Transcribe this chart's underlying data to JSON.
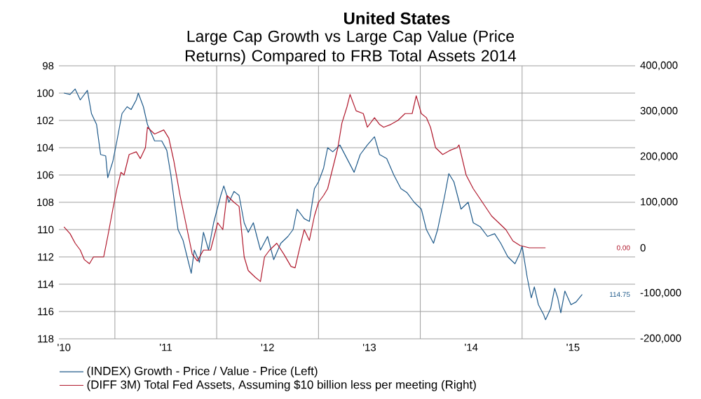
{
  "chart_data": {
    "type": "line",
    "title": "United States",
    "subtitle": "Large Cap Growth vs Large Cap Value (Price Returns) Compared to FRB Total Assets 2014",
    "xlim": [
      2009.95,
      2015.61
    ],
    "annotations": [
      "114.75",
      "0.00"
    ],
    "xticks": [
      {
        "value": 2010,
        "label": "'10"
      },
      {
        "value": 2010.5,
        "label": null
      },
      {
        "value": 2011,
        "label": "'11"
      },
      {
        "value": 2011.5,
        "label": null
      },
      {
        "value": 2012,
        "label": "'12"
      },
      {
        "value": 2012.5,
        "label": null
      },
      {
        "value": 2013,
        "label": "'13"
      },
      {
        "value": 2013.5,
        "label": null
      },
      {
        "value": 2014,
        "label": "'14"
      },
      {
        "value": 2014.5,
        "label": null
      },
      {
        "value": 2015,
        "label": "'15"
      }
    ],
    "ylim": [
      118,
      98
    ],
    "yticks": [
      98,
      100,
      102,
      104,
      106,
      108,
      110,
      112,
      114,
      116,
      118
    ],
    "y2lim": [
      -200000,
      400000
    ],
    "y2ticks": [
      {
        "value": -200000,
        "label": "-200,000"
      },
      {
        "value": -100000,
        "label": "-100,000"
      },
      0,
      {
        "value": 100000,
        "label": "100,000"
      },
      {
        "value": 200000,
        "label": "200,000"
      },
      {
        "value": 300000,
        "label": "300,000"
      },
      {
        "value": 400000,
        "label": "400,000"
      }
    ],
    "grid": true,
    "legend": "bottom",
    "marker": "none",
    "line_style": "solid",
    "series": [
      {
        "name": "(INDEX) Growth - Price / Value - Price (Left)",
        "color": "#1f5a8a",
        "axis": "y",
        "x": [
          2010.0,
          2010.06,
          2010.11,
          2010.16,
          2010.23,
          2010.27,
          2010.32,
          2010.36,
          2010.41,
          2010.43,
          2010.48,
          2010.52,
          2010.57,
          2010.62,
          2010.66,
          2010.71,
          2010.73,
          2010.78,
          2010.82,
          2010.89,
          2010.96,
          2011.01,
          2011.05,
          2011.12,
          2011.17,
          2011.21,
          2011.25,
          2011.28,
          2011.33,
          2011.37,
          2011.42,
          2011.47,
          2011.54,
          2011.57,
          2011.62,
          2011.67,
          2011.72,
          2011.77,
          2011.81,
          2011.86,
          2011.93,
          2012.0,
          2012.06,
          2012.13,
          2012.2,
          2012.25,
          2012.29,
          2012.36,
          2012.41,
          2012.46,
          2012.5,
          2012.55,
          2012.59,
          2012.64,
          2012.71,
          2012.78,
          2012.85,
          2012.91,
          2012.98,
          2013.05,
          2013.1,
          2013.17,
          2013.24,
          2013.31,
          2013.37,
          2013.44,
          2013.51,
          2013.56,
          2013.63,
          2013.67,
          2013.74,
          2013.78,
          2013.83,
          2013.9,
          2013.97,
          2014.02,
          2014.09,
          2014.16,
          2014.23,
          2014.29,
          2014.36,
          2014.43,
          2014.48,
          2014.5,
          2014.55,
          2014.59,
          2014.62,
          2014.66,
          2014.71,
          2014.73,
          2014.78,
          2014.82,
          2014.85,
          2014.88,
          2014.92,
          2014.98,
          2015.03,
          2015.09
        ],
        "values": [
          100,
          100.1,
          99.7,
          100.5,
          99.8,
          101.5,
          102.3,
          104.5,
          104.6,
          106.2,
          105,
          103.5,
          101.5,
          101,
          101.2,
          100.5,
          100,
          101,
          102.3,
          103.5,
          103.5,
          104.2,
          106,
          110,
          110.8,
          112,
          113.2,
          111.5,
          112.4,
          110.2,
          111.5,
          109.5,
          107.5,
          106.8,
          108,
          107.2,
          107.5,
          109.5,
          110.2,
          109.5,
          111.5,
          110.5,
          112.2,
          111,
          110.5,
          110,
          108.5,
          109.2,
          109.4,
          107,
          106.5,
          105.5,
          104,
          104.3,
          103.8,
          104.8,
          105.8,
          104.5,
          103.8,
          103.2,
          104.5,
          104.8,
          106,
          107,
          107.3,
          108,
          108.5,
          110,
          111,
          110,
          107.5,
          105.9,
          106.5,
          108.5,
          108,
          109.5,
          109.8,
          110.5,
          110.3,
          111,
          112,
          112.5,
          111.7,
          111.2,
          113.5,
          115,
          114.2,
          115.5,
          116.2,
          116.6,
          115.8,
          114.3,
          115,
          116.1,
          114.5,
          115.5,
          115.3,
          114.75
        ]
      },
      {
        "name": "(DIFF 3M) Total Fed Assets, Assuming $10 billion less per meeting (Right)",
        "color": "#b0182c",
        "axis": "y2",
        "x": [
          2010.0,
          2010.06,
          2010.11,
          2010.16,
          2010.2,
          2010.25,
          2010.29,
          2010.39,
          2010.43,
          2010.48,
          2010.52,
          2010.56,
          2010.59,
          2010.64,
          2010.71,
          2010.75,
          2010.8,
          2010.82,
          2010.89,
          2010.98,
          2011.03,
          2011.08,
          2011.14,
          2011.21,
          2011.26,
          2011.31,
          2011.37,
          2011.44,
          2011.51,
          2011.56,
          2011.6,
          2011.67,
          2011.72,
          2011.77,
          2011.81,
          2011.88,
          2011.93,
          2011.97,
          2012.02,
          2012.09,
          2012.16,
          2012.23,
          2012.27,
          2012.32,
          2012.36,
          2012.41,
          2012.46,
          2012.5,
          2012.55,
          2012.59,
          2012.64,
          2012.69,
          2012.73,
          2012.78,
          2012.81,
          2012.87,
          2012.94,
          2012.98,
          2013.05,
          2013.1,
          2013.14,
          2013.21,
          2013.28,
          2013.35,
          2013.42,
          2013.46,
          2013.51,
          2013.56,
          2013.6,
          2013.65,
          2013.72,
          2013.79,
          2013.86,
          2013.88,
          2013.95,
          2014.02,
          2014.11,
          2014.2,
          2014.34,
          2014.41,
          2014.48,
          2014.57,
          2014.73
        ],
        "values": [
          46000,
          31000,
          10000,
          -5000,
          -26000,
          -35000,
          -20000,
          -20000,
          25000,
          85000,
          130000,
          166000,
          160000,
          205000,
          211000,
          196000,
          220000,
          265000,
          250000,
          259000,
          241000,
          190000,
          115000,
          40000,
          -14000,
          -29000,
          -5000,
          -5000,
          55000,
          40000,
          115000,
          100000,
          91000,
          -20000,
          -50000,
          -65000,
          -74000,
          -20000,
          -5000,
          10000,
          -14000,
          -41000,
          -44000,
          4000,
          40000,
          16000,
          70000,
          100000,
          115000,
          130000,
          175000,
          220000,
          274000,
          310000,
          337000,
          301000,
          295000,
          265000,
          286000,
          271000,
          265000,
          271000,
          280000,
          295000,
          295000,
          334000,
          295000,
          286000,
          265000,
          220000,
          205000,
          214000,
          220000,
          226000,
          160000,
          130000,
          100000,
          70000,
          40000,
          15000,
          5000,
          0,
          0
        ]
      }
    ]
  }
}
